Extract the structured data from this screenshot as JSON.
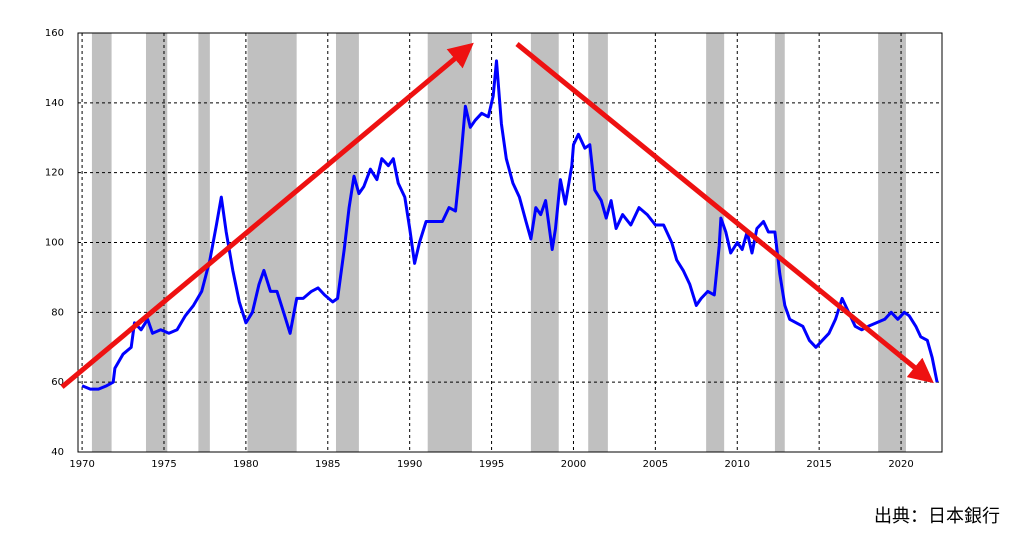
{
  "chart_data": {
    "type": "line",
    "caption": "出典：日本銀行",
    "x": [
      1970.0,
      1970.5,
      1971.0,
      1971.5,
      1971.9,
      1972.0,
      1972.5,
      1973.0,
      1973.2,
      1973.6,
      1974.0,
      1974.3,
      1974.8,
      1975.3,
      1975.8,
      1976.3,
      1976.8,
      1977.3,
      1977.8,
      1978.2,
      1978.5,
      1978.8,
      1979.2,
      1979.6,
      1980.0,
      1980.4,
      1980.8,
      1981.1,
      1981.5,
      1981.9,
      1982.3,
      1982.7,
      1983.1,
      1983.5,
      1984.0,
      1984.4,
      1984.8,
      1985.3,
      1985.6,
      1986.0,
      1986.3,
      1986.6,
      1986.9,
      1987.2,
      1987.6,
      1988.0,
      1988.3,
      1988.7,
      1989.0,
      1989.3,
      1989.7,
      1990.0,
      1990.3,
      1990.6,
      1991.0,
      1991.5,
      1992.0,
      1992.4,
      1992.8,
      1993.1,
      1993.4,
      1993.7,
      1994.0,
      1994.4,
      1994.8,
      1995.1,
      1995.3,
      1995.6,
      1995.9,
      1996.3,
      1996.7,
      1997.1,
      1997.4,
      1997.7,
      1998.0,
      1998.3,
      1998.7,
      1998.9,
      1999.2,
      1999.5,
      1999.9,
      2000.0,
      2000.3,
      2000.7,
      2001.0,
      2001.3,
      2001.7,
      2002.0,
      2002.3,
      2002.6,
      2003.0,
      2003.5,
      2004.0,
      2004.5,
      2005.0,
      2005.5,
      2006.0,
      2006.3,
      2006.7,
      2007.1,
      2007.5,
      2007.8,
      2008.2,
      2008.6,
      2008.9,
      2009.0,
      2009.3,
      2009.6,
      2010.0,
      2010.3,
      2010.6,
      2010.9,
      2011.2,
      2011.6,
      2011.9,
      2012.3,
      2012.6,
      2012.9,
      2013.2,
      2013.6,
      2014.0,
      2014.4,
      2014.8,
      2015.2,
      2015.6,
      2016.0,
      2016.4,
      2016.8,
      2017.2,
      2017.6,
      2018.0,
      2018.5,
      2019.0,
      2019.4,
      2019.8,
      2020.2,
      2020.5,
      2020.9,
      2021.2,
      2021.6,
      2021.9,
      2022.2
    ],
    "series": [
      {
        "color": "#0000ff",
        "values": [
          59,
          58,
          58,
          59,
          60,
          64,
          68,
          70,
          77,
          75,
          78,
          74,
          75,
          74,
          75,
          79,
          82,
          86,
          95,
          105,
          113,
          103,
          92,
          83,
          77,
          80,
          88,
          92,
          86,
          86,
          80,
          74,
          84,
          84,
          86,
          87,
          85,
          83,
          84,
          98,
          110,
          119,
          114,
          116,
          121,
          118,
          124,
          122,
          124,
          117,
          113,
          104,
          94,
          100,
          106,
          106,
          106,
          110,
          109,
          123,
          139,
          133,
          135,
          137,
          136,
          142,
          152,
          134,
          124,
          117,
          113,
          106,
          101,
          110,
          108,
          112,
          98,
          104,
          118,
          111,
          122,
          128,
          131,
          127,
          128,
          115,
          112,
          107,
          112,
          104,
          108,
          105,
          110,
          108,
          105,
          105,
          100,
          95,
          92,
          88,
          82,
          84,
          86,
          85,
          99,
          107,
          103,
          97,
          100,
          98,
          103,
          97,
          104,
          106,
          103,
          103,
          91,
          82,
          78,
          77,
          76,
          72,
          70,
          72,
          74,
          78,
          84,
          80,
          76,
          75,
          76,
          77,
          78,
          80,
          78,
          80,
          79,
          76,
          73,
          72,
          67,
          60
        ]
      }
    ],
    "shaded_ranges": [
      [
        1970.6,
        1971.8
      ],
      [
        1973.9,
        1975.2
      ],
      [
        1977.1,
        1977.8
      ],
      [
        1980.1,
        1983.1
      ],
      [
        1985.5,
        1986.9
      ],
      [
        1991.1,
        1993.8
      ],
      [
        1997.4,
        1999.1
      ],
      [
        2000.9,
        2002.1
      ],
      [
        2008.1,
        2009.2
      ],
      [
        2012.3,
        2012.9
      ],
      [
        2018.6,
        2020.3
      ]
    ],
    "shade_color": "#c0c0c0",
    "xlim": [
      1969.75,
      2022.5
    ],
    "ylim": [
      40,
      160
    ],
    "xticks": [
      1970,
      1975,
      1980,
      1985,
      1990,
      1995,
      2000,
      2005,
      2010,
      2015,
      2020
    ],
    "yticks": [
      40,
      60,
      80,
      100,
      120,
      140,
      160
    ],
    "grid": true
  }
}
